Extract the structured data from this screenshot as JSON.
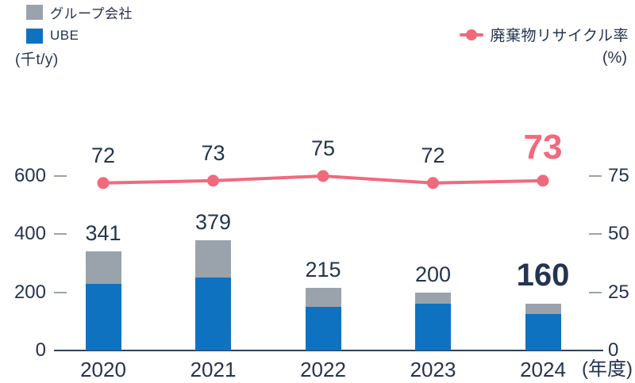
{
  "legend": {
    "group_label": "グループ会社",
    "ube_label": "UBE",
    "line_label": "廃棄物リサイクル率"
  },
  "axes": {
    "left_unit": "(千t/y)",
    "right_unit": "(%)",
    "x_note": "(年度)"
  },
  "colors": {
    "ube_blue": "#0f72c0",
    "group_gray": "#9aa3ab",
    "line_pink": "#f2697e",
    "text_navy": "#243450",
    "tick_gray": "#9aa3ab",
    "axis_line": "#2f4157"
  },
  "chart_data": {
    "type": "combo-stacked-bar-line",
    "categories": [
      "2020",
      "2021",
      "2022",
      "2023",
      "2024"
    ],
    "bar_series": [
      {
        "name": "UBE",
        "color_key": "ube_blue",
        "values": [
          230,
          250,
          150,
          160,
          125
        ]
      },
      {
        "name": "グループ会社",
        "color_key": "group_gray",
        "values": [
          111,
          129,
          65,
          40,
          35
        ]
      }
    ],
    "bar_totals": [
      341,
      379,
      215,
      200,
      160
    ],
    "line_series": {
      "name": "廃棄物リサイクル率",
      "color_key": "line_pink",
      "values": [
        72,
        73,
        75,
        72,
        73
      ]
    },
    "left_axis": {
      "unit": "(千t/y)",
      "ticks": [
        0,
        200,
        400,
        600
      ],
      "max": 600
    },
    "right_axis": {
      "unit": "(%)",
      "ticks": [
        0,
        25,
        50,
        75
      ],
      "max": 75
    },
    "x_note": "(年度)",
    "legend_position": "top"
  }
}
